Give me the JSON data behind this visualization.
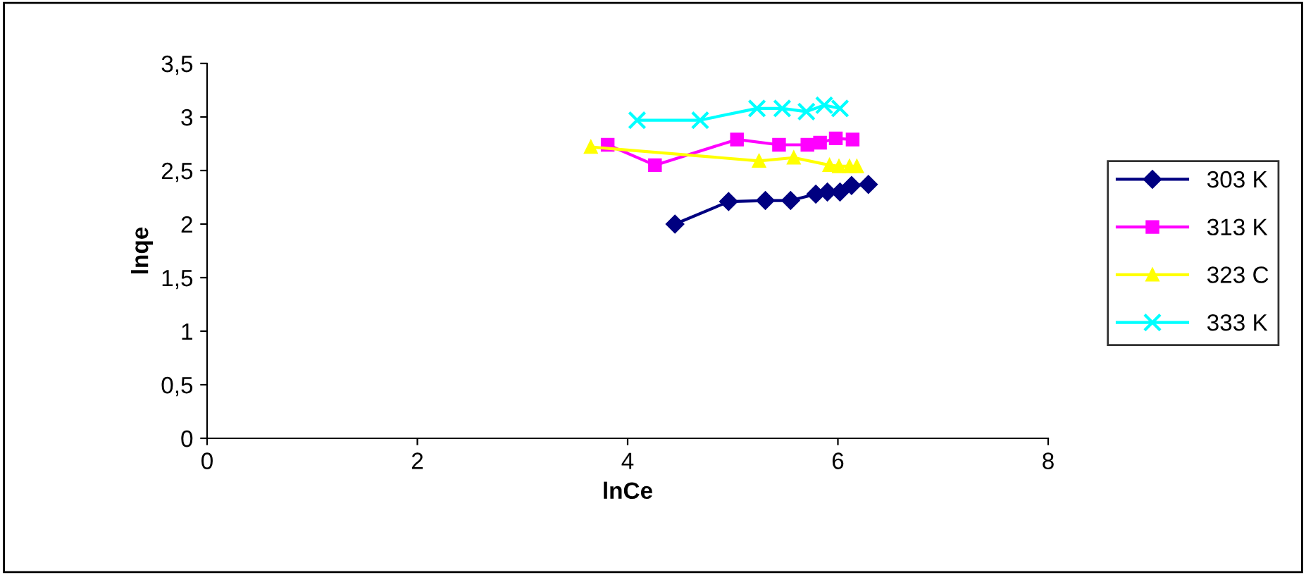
{
  "chart_data": {
    "type": "line",
    "xlabel": "lnCe",
    "ylabel": "lnqe",
    "xlim": [
      0,
      8
    ],
    "xticks": [
      0,
      2,
      4,
      6,
      8
    ],
    "ylim": [
      0,
      3.5
    ],
    "yticks": [
      {
        "value": 0,
        "label": "0"
      },
      {
        "value": 0.5,
        "label": "0,5"
      },
      {
        "value": 1,
        "label": "1"
      },
      {
        "value": 1.5,
        "label": "1,5"
      },
      {
        "value": 2,
        "label": "2"
      },
      {
        "value": 2.5,
        "label": "2,5"
      },
      {
        "value": 3,
        "label": "3"
      },
      {
        "value": 3.5,
        "label": "3,5"
      }
    ],
    "legend": "right",
    "grid": false,
    "series": [
      {
        "name": "303 K",
        "color": "#000080",
        "marker": "diamond",
        "x": [
          4.45,
          4.96,
          5.31,
          5.55,
          5.79,
          5.9,
          6.02,
          6.13,
          6.29
        ],
        "values": [
          2.0,
          2.21,
          2.22,
          2.22,
          2.28,
          2.3,
          2.3,
          2.36,
          2.37
        ]
      },
      {
        "name": "313 K",
        "color": "#ff00ff",
        "marker": "square",
        "x": [
          3.81,
          4.26,
          5.04,
          5.44,
          5.71,
          5.83,
          5.98,
          6.14
        ],
        "values": [
          2.74,
          2.55,
          2.79,
          2.74,
          2.74,
          2.76,
          2.8,
          2.79
        ]
      },
      {
        "name": "323 C",
        "color": "#ffff00",
        "marker": "triangle",
        "x": [
          3.65,
          5.25,
          5.58,
          5.92,
          6.01,
          6.11,
          6.18
        ],
        "values": [
          2.72,
          2.59,
          2.62,
          2.55,
          2.54,
          2.54,
          2.54
        ]
      },
      {
        "name": "333 K",
        "color": "#00ffff",
        "marker": "cross",
        "x": [
          4.09,
          4.69,
          5.23,
          5.47,
          5.7,
          5.87,
          6.02
        ],
        "values": [
          2.97,
          2.97,
          3.08,
          3.08,
          3.05,
          3.11,
          3.08
        ]
      }
    ]
  }
}
